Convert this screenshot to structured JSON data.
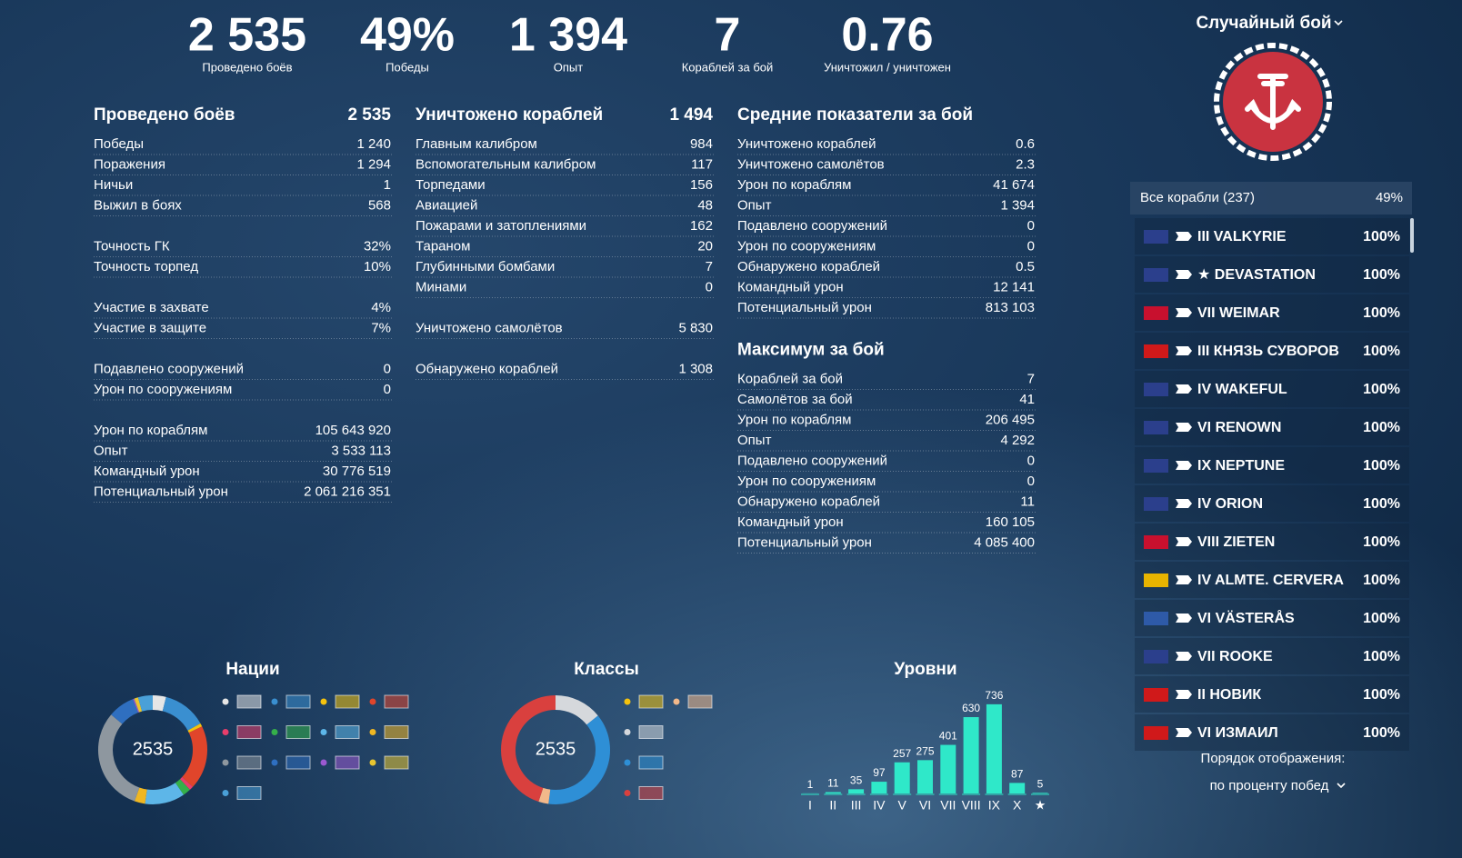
{
  "summary": [
    {
      "value": "2 535",
      "label": "Проведено боёв"
    },
    {
      "value": "49%",
      "label": "Победы"
    },
    {
      "value": "1 394",
      "label": "Опыт"
    },
    {
      "value": "7",
      "label": "Кораблей за бой"
    },
    {
      "value": "0.76",
      "label": "Уничтожил / уничтожен"
    }
  ],
  "columns": [
    [
      {
        "title": "Проведено боёв",
        "value": "2 535",
        "groups": [
          [
            [
              "Победы",
              "1 240"
            ],
            [
              "Поражения",
              "1 294"
            ],
            [
              "Ничьи",
              "1"
            ],
            [
              "Выжил в боях",
              "568"
            ]
          ],
          [
            [
              "Точность ГК",
              "32%"
            ],
            [
              "Точность торпед",
              "10%"
            ]
          ],
          [
            [
              "Участие в захвате",
              "4%"
            ],
            [
              "Участие в защите",
              "7%"
            ]
          ],
          [
            [
              "Подавлено сооружений",
              "0"
            ],
            [
              "Урон по сооружениям",
              "0"
            ]
          ],
          [
            [
              "Урон по кораблям",
              "105 643 920"
            ],
            [
              "Опыт",
              "3 533 113"
            ],
            [
              "Командный урон",
              "30 776 519"
            ],
            [
              "Потенциальный урон",
              "2 061 216 351"
            ]
          ]
        ]
      }
    ],
    [
      {
        "title": "Уничтожено кораблей",
        "value": "1 494",
        "groups": [
          [
            [
              "Главным калибром",
              "984"
            ],
            [
              "Вспомогательным калибром",
              "117"
            ],
            [
              "Торпедами",
              "156"
            ],
            [
              "Авиацией",
              "48"
            ],
            [
              "Пожарами и затоплениями",
              "162"
            ],
            [
              "Тараном",
              "20"
            ],
            [
              "Глубинными бомбами",
              "7"
            ],
            [
              "Минами",
              "0"
            ]
          ],
          [
            [
              "Уничтожено самолётов",
              "5 830"
            ]
          ],
          [
            [
              "Обнаружено кораблей",
              "1 308"
            ]
          ]
        ]
      }
    ],
    [
      {
        "title": "Средние показатели за бой",
        "groups": [
          [
            [
              "Уничтожено кораблей",
              "0.6"
            ],
            [
              "Уничтожено самолётов",
              "2.3"
            ],
            [
              "Урон по кораблям",
              "41 674"
            ],
            [
              "Опыт",
              "1 394"
            ],
            [
              "Подавлено сооружений",
              "0"
            ],
            [
              "Урон по сооружениям",
              "0"
            ],
            [
              "Обнаружено кораблей",
              "0.5"
            ],
            [
              "Командный урон",
              "12 141"
            ],
            [
              "Потенциальный урон",
              "813 103"
            ]
          ]
        ]
      },
      {
        "title": "Максимум за бой",
        "groups": [
          [
            [
              "Кораблей за бой",
              "7"
            ],
            [
              "Самолётов за бой",
              "41"
            ],
            [
              "Урон по кораблям",
              "206 495"
            ],
            [
              "Опыт",
              "4 292"
            ],
            [
              "Подавлено сооружений",
              "0"
            ],
            [
              "Урон по сооружениям",
              "0"
            ],
            [
              "Обнаружено кораблей",
              "11"
            ],
            [
              "Командный урон",
              "160 105"
            ],
            [
              "Потенциальный урон",
              "4 085 400"
            ]
          ]
        ]
      }
    ]
  ],
  "mode": "Случайный бой",
  "ships": {
    "header": {
      "label": "Все корабли (237)",
      "value": "49%"
    },
    "items": [
      {
        "name": "III VALKYRIE",
        "value": "100%",
        "flag": "#2b3f8c"
      },
      {
        "name": "★ DEVASTATION",
        "value": "100%",
        "flag": "#2b3f8c"
      },
      {
        "name": "VII WEIMAR",
        "value": "100%",
        "flag": "#c8102e",
        "highlight": true
      },
      {
        "name": "III КНЯЗЬ СУВОРОВ",
        "value": "100%",
        "flag": "#d0191a"
      },
      {
        "name": "IV WAKEFUL",
        "value": "100%",
        "flag": "#2b3f8c"
      },
      {
        "name": "VI RENOWN",
        "value": "100%",
        "flag": "#2b3f8c"
      },
      {
        "name": "IX NEPTUNE",
        "value": "100%",
        "flag": "#2b3f8c"
      },
      {
        "name": "IV ORION",
        "value": "100%",
        "flag": "#2b3f8c"
      },
      {
        "name": "VIII ZIETEN",
        "value": "100%",
        "flag": "#c8102e"
      },
      {
        "name": "IV ALMTE. CERVERA",
        "value": "100%",
        "flag": "#e8b400"
      },
      {
        "name": "VI VÄSTERÅS",
        "value": "100%",
        "flag": "#2e5aa8"
      },
      {
        "name": "VII ROOKE",
        "value": "100%",
        "flag": "#2b3f8c"
      },
      {
        "name": "II НОВИК",
        "value": "100%",
        "flag": "#d0191a"
      },
      {
        "name": "VI ИЗМАИЛ",
        "value": "100%",
        "flag": "#d0191a"
      }
    ],
    "sort_label": "Порядок отображения:",
    "sort_value": "по проценту побед"
  },
  "chart_data": [
    {
      "type": "donut",
      "title": "Нации",
      "center_label": "2535",
      "values": [
        100,
        330,
        25,
        480,
        30,
        60,
        300,
        80,
        780,
        200,
        10,
        30,
        110
      ],
      "colors": [
        "#e6e6e6",
        "#3a8fd0",
        "#f4c20d",
        "#e0452b",
        "#e83e6b",
        "#35b04a",
        "#5db6e8",
        "#f0b722",
        "#8e979f",
        "#2f6fc0",
        "#9b59d0",
        "#e8c530",
        "#4aa0d8"
      ]
    },
    {
      "type": "donut",
      "title": "Классы",
      "center_label": "2535",
      "values": [
        0,
        360,
        960,
        75,
        1140
      ],
      "colors": [
        "#f4c20d",
        "#d5d8dc",
        "#2e8fd6",
        "#f2b88a",
        "#d9403e"
      ]
    },
    {
      "type": "bar",
      "title": "Уровни",
      "categories": [
        "I",
        "II",
        "III",
        "IV",
        "V",
        "VI",
        "VII",
        "VIII",
        "IX",
        "X",
        "★"
      ],
      "values": [
        1,
        11,
        35,
        97,
        257,
        275,
        401,
        630,
        736,
        87,
        5
      ],
      "color": "#2fe8c9",
      "ylim": [
        0,
        750
      ]
    }
  ]
}
